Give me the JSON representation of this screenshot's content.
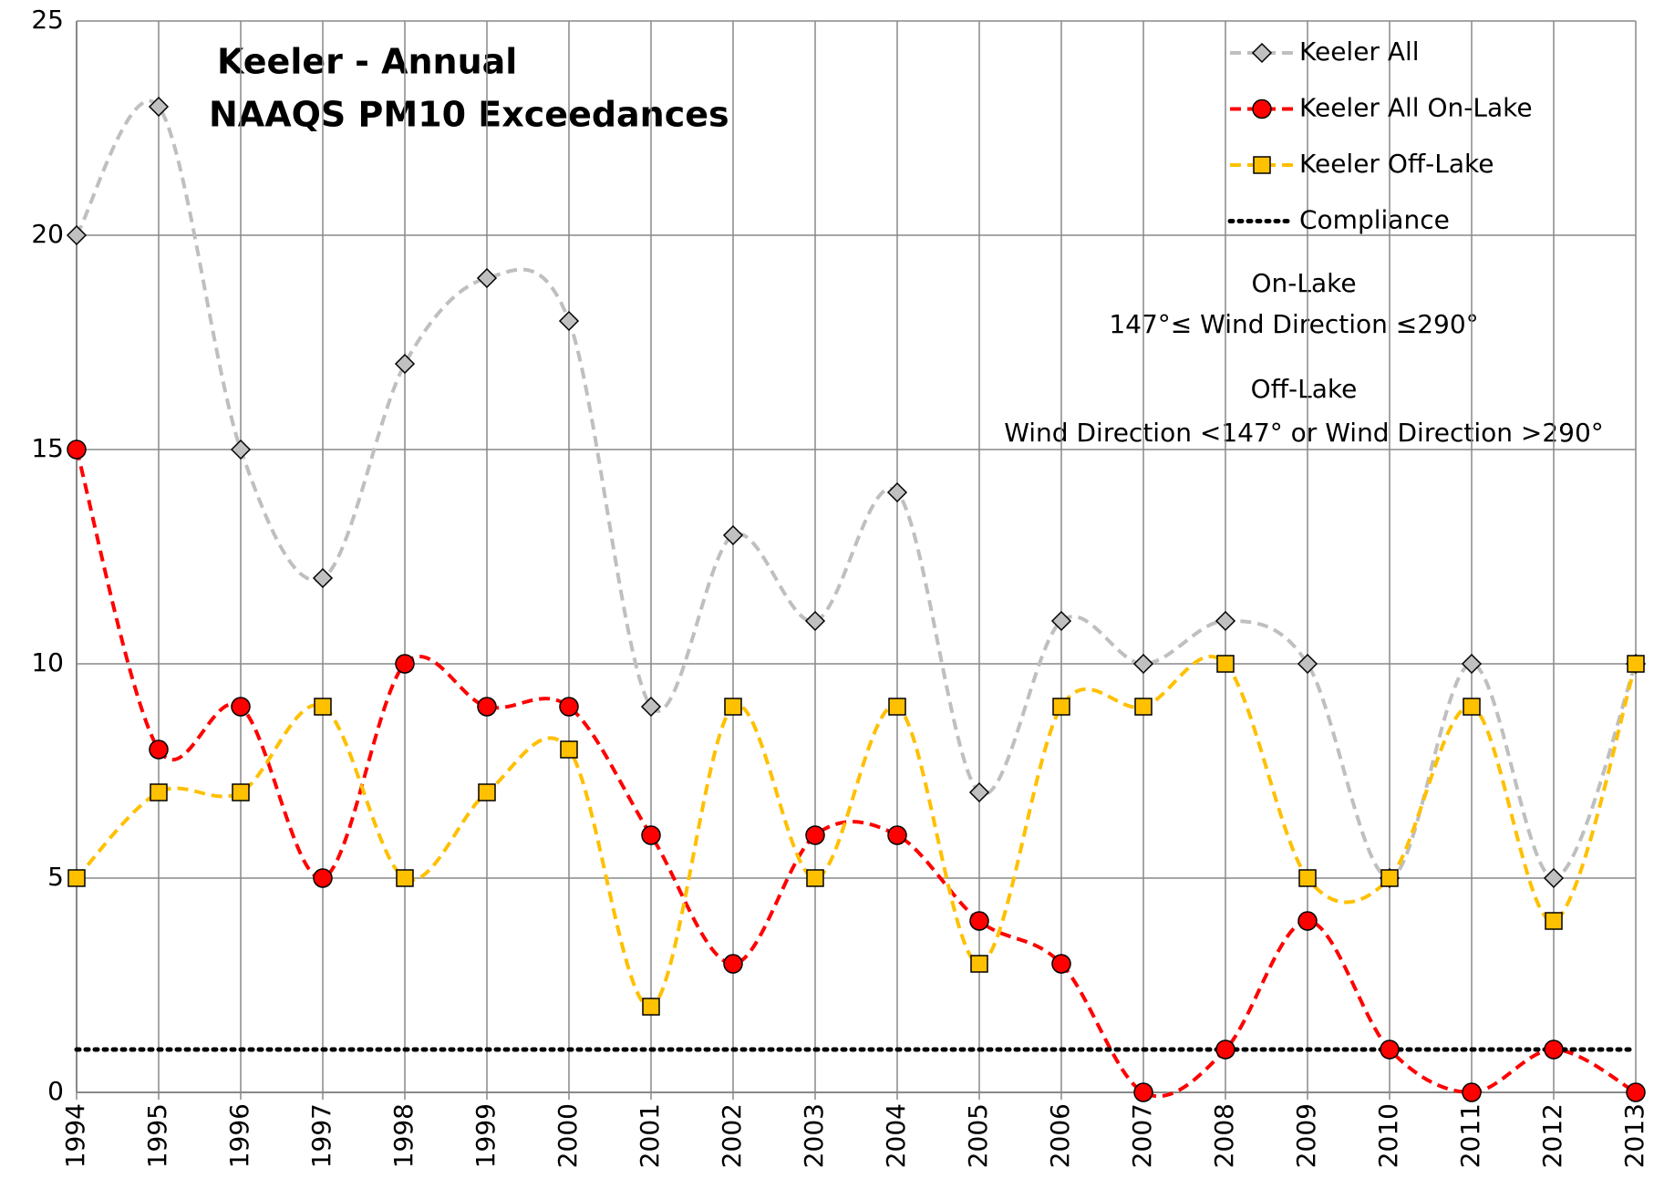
{
  "chart_data": {
    "type": "line",
    "title": [
      "Keeler - Annual",
      "NAAQS PM10 Exceedances"
    ],
    "annotations": [
      "On-Lake",
      "147°≤ Wind Direction ≤290°",
      "Off-Lake",
      "Wind Direction <147° or Wind Direction >290°"
    ],
    "categories": [
      "1994",
      "1995",
      "1996",
      "1997",
      "1998",
      "1999",
      "2000",
      "2001",
      "2002",
      "2003",
      "2004",
      "2005",
      "2006",
      "2007",
      "2008",
      "2009",
      "2010",
      "2011",
      "2012",
      "2013"
    ],
    "series": [
      {
        "name": "Keeler All",
        "color": "#bfbfbf",
        "marker": "diamond",
        "marker_color": "#c0c0c0",
        "dash": "dashed",
        "smooth": true,
        "values": [
          20,
          23,
          15,
          12,
          17,
          19,
          18,
          9,
          13,
          11,
          14,
          7,
          11,
          10,
          11,
          10,
          5,
          10,
          5,
          10
        ]
      },
      {
        "name": "Keeler All On-Lake",
        "color": "#ff0000",
        "marker": "circle",
        "marker_color": "#ff0000",
        "dash": "dashed",
        "smooth": true,
        "values": [
          15,
          8,
          9,
          5,
          10,
          9,
          9,
          6,
          3,
          6,
          6,
          4,
          3,
          0,
          1,
          4,
          1,
          0,
          1,
          0
        ]
      },
      {
        "name": "Keeler Off-Lake",
        "color": "#ffc000",
        "marker": "square",
        "marker_color": "#ffc000",
        "dash": "dashed",
        "smooth": true,
        "values": [
          5,
          7,
          7,
          9,
          5,
          7,
          8,
          2,
          9,
          5,
          9,
          3,
          9,
          9,
          10,
          5,
          5,
          9,
          4,
          10
        ]
      },
      {
        "name": "Compliance",
        "color": "#000000",
        "marker": "none",
        "dash": "dotted",
        "smooth": false,
        "values": [
          1,
          1,
          1,
          1,
          1,
          1,
          1,
          1,
          1,
          1,
          1,
          1,
          1,
          1,
          1,
          1,
          1,
          1,
          1,
          1
        ]
      }
    ],
    "ylim": [
      0,
      25
    ],
    "yticks": [
      0,
      5,
      10,
      15,
      20,
      25
    ],
    "grid": true,
    "legend": "top-right"
  }
}
